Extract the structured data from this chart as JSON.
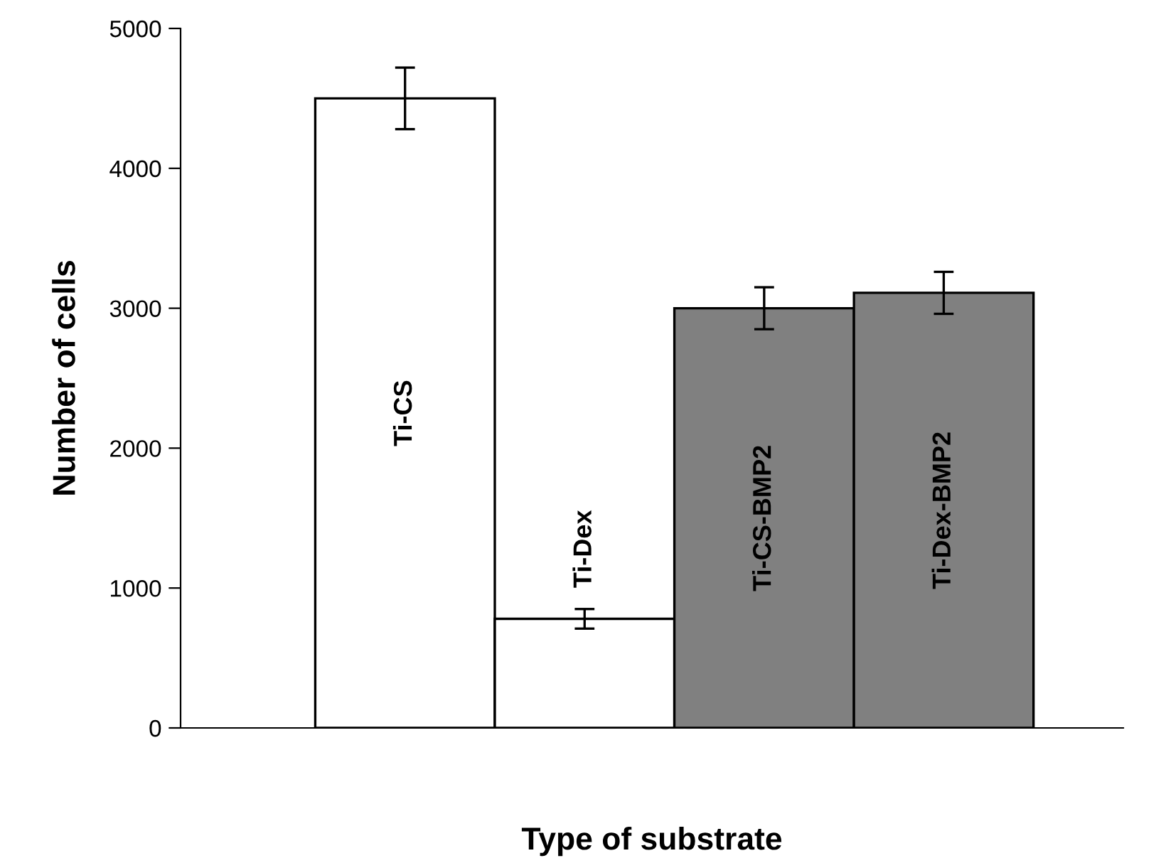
{
  "chart_data": {
    "type": "bar",
    "xlabel": "Type of substrate",
    "ylabel": "Number of cells",
    "categories": [
      "Ti-CS",
      "Ti-Dex",
      "Ti-CS-BMP2",
      "Ti-Dex-BMP2"
    ],
    "values": [
      4500,
      780,
      3000,
      3110
    ],
    "errors": [
      220,
      70,
      150,
      150
    ],
    "colors": [
      "#ffffff",
      "#ffffff",
      "#808080",
      "#808080"
    ],
    "ylim": [
      0,
      5000
    ],
    "yticks": [
      0,
      1000,
      2000,
      3000,
      4000,
      5000
    ],
    "grid": false
  }
}
